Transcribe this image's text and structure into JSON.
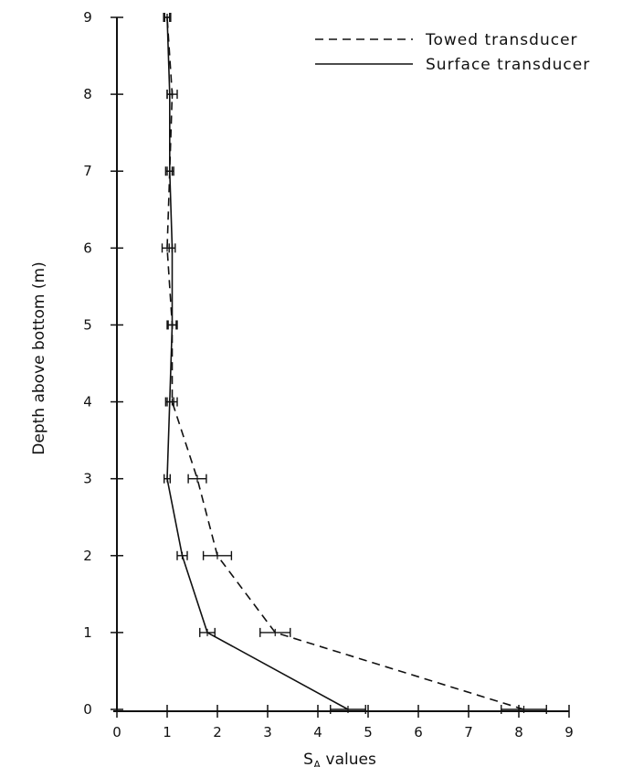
{
  "chart_data": {
    "type": "line",
    "xlabel": "S",
    "xlabel_subscript": "A",
    "xlabel_suffix": " values",
    "ylabel": "Depth above bottom (m)",
    "xlim": [
      0,
      9
    ],
    "ylim": [
      0,
      9
    ],
    "xticks": [
      "0",
      "1",
      "2",
      "3",
      "4",
      "5",
      "6",
      "7",
      "8",
      "9"
    ],
    "yticks": [
      "0",
      "1",
      "2",
      "3",
      "4",
      "5",
      "6",
      "7",
      "8",
      "9"
    ],
    "grid": false,
    "legend_position": "top-right",
    "series": [
      {
        "name": "Towed transducer",
        "style": "dashed",
        "color": "#111111",
        "y": [
          0,
          1,
          2,
          3,
          4,
          5,
          6,
          7,
          8,
          9
        ],
        "x": [
          8.1,
          3.15,
          2.0,
          1.6,
          1.1,
          1.1,
          1.0,
          1.05,
          1.1,
          1.0
        ],
        "err": [
          0.45,
          0.3,
          0.28,
          0.18,
          0.1,
          0.1,
          0.1,
          0.08,
          0.1,
          0.07
        ]
      },
      {
        "name": "Surface transducer",
        "style": "solid",
        "color": "#111111",
        "y": [
          0,
          1,
          2,
          3,
          4,
          5,
          6,
          7,
          8,
          9
        ],
        "x": [
          4.6,
          1.8,
          1.3,
          1.0,
          1.05,
          1.1,
          1.1,
          1.05,
          1.05,
          1.0
        ],
        "err": [
          0.35,
          0.15,
          0.1,
          0.06,
          0.08,
          0.08,
          0.06,
          0.05,
          0.05,
          0.05
        ]
      }
    ]
  }
}
